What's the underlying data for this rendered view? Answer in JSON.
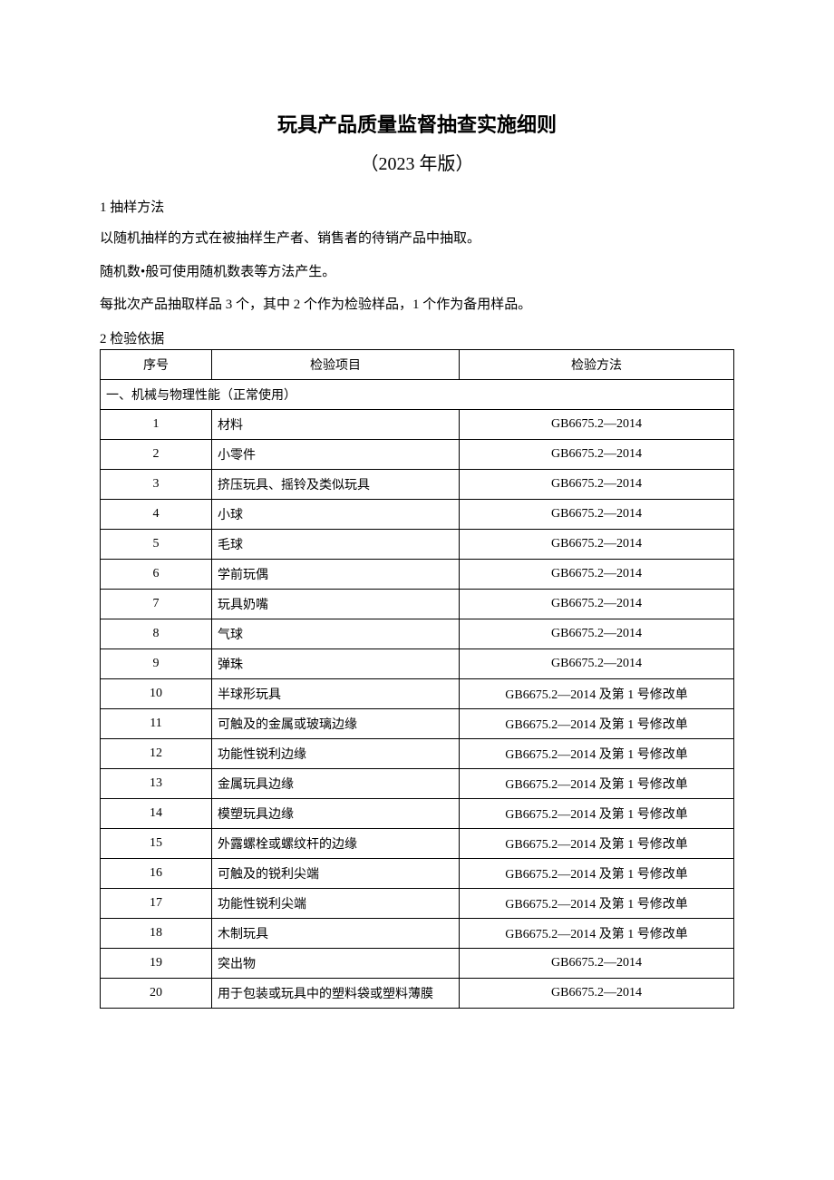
{
  "title": "玩具产品质量监督抽查实施细则",
  "subtitle": "（2023 年版）",
  "section1_heading": "1 抽样方法",
  "p1": "以随机抽样的方式在被抽样生产者、销售者的待销产品中抽取。",
  "p2": "随机数•般可使用随机数表等方法产生。",
  "p3": "每批次产品抽取样品 3 个，其中 2 个作为检验样品，1 个作为备用样品。",
  "section2_heading": "2 检验依据",
  "table": {
    "headers": {
      "num": "序号",
      "item": "检验项目",
      "method": "检验方法"
    },
    "section_label": "一、机械与物理性能（正常使用）",
    "rows": [
      {
        "num": "1",
        "item": "材料",
        "method": "GB6675.2—2014"
      },
      {
        "num": "2",
        "item": "小零件",
        "method": "GB6675.2—2014"
      },
      {
        "num": "3",
        "item": "挤压玩具、摇铃及类似玩具",
        "method": "GB6675.2—2014"
      },
      {
        "num": "4",
        "item": "小球",
        "method": "GB6675.2—2014"
      },
      {
        "num": "5",
        "item": "毛球",
        "method": "GB6675.2—2014"
      },
      {
        "num": "6",
        "item": "学前玩偶",
        "method": "GB6675.2—2014"
      },
      {
        "num": "7",
        "item": "玩具奶嘴",
        "method": "GB6675.2—2014"
      },
      {
        "num": "8",
        "item": "气球",
        "method": "GB6675.2—2014"
      },
      {
        "num": "9",
        "item": "弹珠",
        "method": "GB6675.2—2014"
      },
      {
        "num": "10",
        "item": "半球形玩具",
        "method": "GB6675.2—2014 及第 1 号修改单"
      },
      {
        "num": "11",
        "item": "可触及的金属或玻璃边缘",
        "method": "GB6675.2—2014 及第 1 号修改单"
      },
      {
        "num": "12",
        "item": "功能性锐利边缘",
        "method": "GB6675.2—2014 及第 1 号修改单"
      },
      {
        "num": "13",
        "item": "金属玩具边缘",
        "method": "GB6675.2—2014 及第 1 号修改单"
      },
      {
        "num": "14",
        "item": "模塑玩具边缘",
        "method": "GB6675.2—2014 及第 1 号修改单"
      },
      {
        "num": "15",
        "item": "外露螺栓或螺纹杆的边缘",
        "method": "GB6675.2—2014 及第 1 号修改单"
      },
      {
        "num": "16",
        "item": "可触及的锐利尖端",
        "method": "GB6675.2—2014 及第 1 号修改单"
      },
      {
        "num": "17",
        "item": "功能性锐利尖端",
        "method": "GB6675.2—2014 及第 1 号修改单"
      },
      {
        "num": "18",
        "item": "木制玩具",
        "method": "GB6675.2—2014 及第 1 号修改单"
      },
      {
        "num": "19",
        "item": "突出物",
        "method": "GB6675.2—2014"
      },
      {
        "num": "20",
        "item": "用于包装或玩具中的塑料袋或塑料薄膜",
        "method": "GB6675.2—2014"
      }
    ]
  }
}
